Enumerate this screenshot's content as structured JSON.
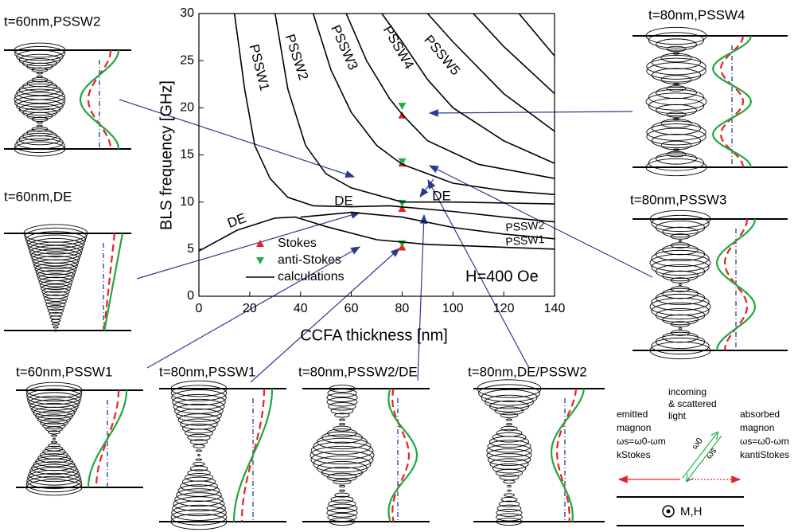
{
  "chart_data": {
    "type": "scatter",
    "xlabel": "CCFA thickness [nm]",
    "ylabel": "BLS frequency [GHz]",
    "xlim": [
      0,
      140
    ],
    "ylim": [
      0,
      30
    ],
    "xticks": [
      0,
      20,
      40,
      60,
      80,
      100,
      120,
      140
    ],
    "yticks": [
      0,
      5,
      10,
      15,
      20,
      25,
      30
    ],
    "annotation": "H=400 Oe",
    "curve_labels": [
      "PSSW1",
      "PSSW2",
      "PSSW3",
      "PSSW4",
      "PSSW5",
      "DE",
      "DE",
      "DE",
      "PSSW2",
      "PSSW1"
    ],
    "series": [
      {
        "name": "Stokes",
        "color": "#e8202a",
        "marker": "triangle-up",
        "x": [
          80,
          80,
          80,
          80
        ],
        "values": [
          5.2,
          9.3,
          14.1,
          19.2
        ]
      },
      {
        "name": "anti-Stokes",
        "color": "#22b04b",
        "marker": "triangle-down",
        "x": [
          80,
          80,
          80,
          80
        ],
        "values": [
          5.6,
          9.9,
          14.3,
          20.2
        ]
      },
      {
        "name": "calculations",
        "color": "#000000",
        "curves": [
          {
            "x": [
              0,
              15,
              30,
              38,
              50,
              70,
              90,
              140
            ],
            "values": [
              4.8,
              7,
              8.3,
              8.4,
              7.4,
              6,
              5.5,
              5
            ]
          },
          {
            "x": [
              40,
              60,
              80,
              100,
              120,
              140
            ],
            "values": [
              8.4,
              8.9,
              8.4,
              7.3,
              6.6,
              6.1
            ]
          },
          {
            "x": [
              14,
              18,
              22,
              28,
              35,
              45,
              60,
              75,
              100,
              120,
              140
            ],
            "values": [
              30,
              22,
              16,
              12.5,
              10.5,
              9.6,
              9.5,
              9.6,
              9,
              8.4,
              7.9
            ]
          },
          {
            "x": [
              30,
              35,
              42,
              50,
              60,
              80,
              100,
              140
            ],
            "values": [
              30,
              22,
              16,
              13,
              11.5,
              10,
              10,
              9.8
            ]
          },
          {
            "x": [
              45,
              52,
              60,
              70,
              80,
              100,
              120,
              140
            ],
            "values": [
              30,
              24,
              19.5,
              16,
              14,
              12,
              11.2,
              10.8
            ]
          },
          {
            "x": [
              58,
              66,
              75,
              80,
              90,
              110,
              140
            ],
            "values": [
              30,
              25,
              21,
              19.3,
              16.5,
              14,
              12.5
            ]
          },
          {
            "x": [
              72,
              80,
              90,
              100,
              120,
              140
            ],
            "values": [
              30,
              27,
              23,
              20,
              16.5,
              14.1
            ]
          },
          {
            "x": [
              90,
              100,
              120,
              140
            ],
            "values": [
              30,
              27,
              21.5,
              17.5
            ]
          },
          {
            "x": [
              108,
              120,
              140
            ],
            "values": [
              30,
              26.5,
              21.5
            ]
          },
          {
            "x": [
              126,
              140
            ],
            "values": [
              30,
              25.5
            ]
          }
        ]
      }
    ]
  },
  "panels": [
    {
      "title": "t=60nm,PSSW2"
    },
    {
      "title": "t=80nm,PSSW4"
    },
    {
      "title": "t=60nm,DE"
    },
    {
      "title": "t=80nm,PSSW3"
    },
    {
      "title": "t=60nm,PSSW1"
    },
    {
      "title": "t=80nm,PSSW1"
    },
    {
      "title": "t=80nm,PSSW2/DE"
    },
    {
      "title": "t=80nm,DE/PSSW2"
    }
  ],
  "inset": {
    "light": [
      "incoming",
      "& scattered",
      "light"
    ],
    "emitted": [
      "emitted",
      "magnon",
      "ωs=ω0-ωm",
      "kStokes"
    ],
    "absorbed": [
      "absorbed",
      "magnon",
      "ωs=ω0-ωm",
      "kantiStokes"
    ],
    "omega0": "ω0",
    "omegas": "ωs",
    "field": "M,H"
  }
}
